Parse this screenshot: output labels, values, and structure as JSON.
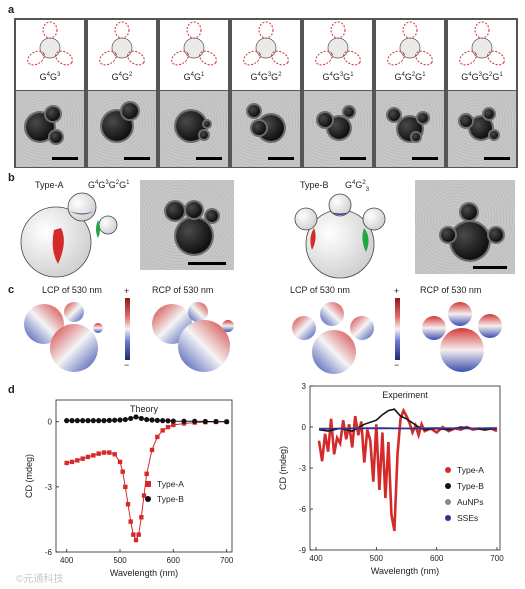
{
  "panels": {
    "a": {
      "letter": "a",
      "labels": [
        {
          "base": "G",
          "b1": "4",
          "mid": "G",
          "b2": "3",
          "rest": ""
        },
        {
          "base": "G",
          "b1": "4",
          "mid": "G",
          "b2": "2",
          "rest": ""
        },
        {
          "base": "G",
          "b1": "4",
          "mid": "G",
          "b2": "1",
          "rest": ""
        },
        {
          "base": "G",
          "b1": "4",
          "mid": "G",
          "b2": "3",
          "rest": "G",
          "b3": "2"
        },
        {
          "base": "G",
          "b1": "4",
          "mid": "G",
          "b2": "3",
          "rest": "G",
          "b3": "1"
        },
        {
          "base": "G",
          "b1": "4",
          "mid": "G",
          "b2": "2",
          "rest": "G",
          "b3": "1"
        },
        {
          "base": "G",
          "b1": "4",
          "mid": "G",
          "b2": "3",
          "rest": "G",
          "b3": "2",
          "extra": "G",
          "b4": "1"
        }
      ]
    },
    "b": {
      "letter": "b",
      "type_a": "Type-A",
      "type_a_formula": {
        "t1": "G",
        "s1": "4",
        "t2": "G",
        "s2": "3",
        "t3": "G",
        "s3": "2",
        "t4": "G",
        "s4": "1"
      },
      "type_b": "Type-B",
      "type_b_formula": {
        "t1": "G",
        "s1": "4",
        "t2": "G",
        "s2": "2",
        "sub": "3"
      }
    },
    "c": {
      "letter": "c",
      "maps": [
        "LCP of 530 nm",
        "RCP of 530 nm",
        "LCP of 530 nm",
        "RCP of 530 nm"
      ],
      "scale_plus": "+",
      "scale_minus": "−"
    },
    "d": {
      "letter": "d"
    }
  },
  "watermark": "©元通科技",
  "chart_data": [
    {
      "type": "line",
      "title": "Theory",
      "xlabel": "Wavelength (nm)",
      "ylabel": "CD (mdeg)",
      "xlim": [
        380,
        710
      ],
      "ylim": [
        -6,
        1
      ],
      "xticks": [
        400,
        500,
        600,
        700
      ],
      "yticks": [
        0,
        -3,
        -6
      ],
      "legend_position": "lower-right",
      "series": [
        {
          "name": "Type-A",
          "color": "#d42a2a",
          "marker": "square",
          "x": [
            400,
            410,
            420,
            430,
            440,
            450,
            460,
            470,
            480,
            490,
            500,
            505,
            510,
            515,
            520,
            525,
            530,
            535,
            540,
            545,
            550,
            560,
            570,
            580,
            590,
            600,
            620,
            640,
            660,
            680,
            700
          ],
          "y": [
            -1.9,
            -1.85,
            -1.78,
            -1.7,
            -1.62,
            -1.55,
            -1.47,
            -1.42,
            -1.42,
            -1.5,
            -1.85,
            -2.3,
            -3.0,
            -3.8,
            -4.6,
            -5.2,
            -5.45,
            -5.2,
            -4.4,
            -3.4,
            -2.4,
            -1.3,
            -0.7,
            -0.4,
            -0.25,
            -0.15,
            -0.08,
            -0.04,
            -0.02,
            -0.01,
            0.0
          ]
        },
        {
          "name": "Type-B",
          "color": "#111111",
          "marker": "circle",
          "x": [
            400,
            410,
            420,
            430,
            440,
            450,
            460,
            470,
            480,
            490,
            500,
            510,
            520,
            530,
            540,
            550,
            560,
            570,
            580,
            590,
            600,
            620,
            640,
            660,
            680,
            700
          ],
          "y": [
            0.05,
            0.05,
            0.05,
            0.05,
            0.05,
            0.05,
            0.05,
            0.05,
            0.06,
            0.07,
            0.08,
            0.1,
            0.15,
            0.22,
            0.15,
            0.1,
            0.08,
            0.06,
            0.05,
            0.04,
            0.03,
            0.02,
            0.02,
            0.01,
            0.01,
            0.0
          ]
        }
      ]
    },
    {
      "type": "line",
      "title": "Experiment",
      "xlabel": "Wavelength (nm)",
      "ylabel": "CD (mdeg)",
      "xlim": [
        390,
        705
      ],
      "ylim": [
        -9,
        3
      ],
      "xticks": [
        400,
        500,
        600,
        700
      ],
      "yticks": [
        3,
        0,
        -3,
        -6,
        -9
      ],
      "legend_position": "right",
      "series": [
        {
          "name": "Type-A",
          "color": "#d42a2a",
          "x": [
            405,
            410,
            415,
            420,
            425,
            430,
            435,
            440,
            445,
            450,
            455,
            460,
            465,
            470,
            475,
            480,
            485,
            490,
            495,
            500,
            505,
            510,
            515,
            520,
            525,
            530,
            535,
            540,
            545,
            550,
            555,
            560,
            565,
            570,
            575,
            580,
            590,
            600,
            610,
            620,
            630,
            640,
            650,
            660,
            670,
            680,
            690,
            700
          ],
          "y": [
            -1.0,
            -2.5,
            -0.5,
            -1.8,
            0.6,
            -2.0,
            -0.8,
            -1.2,
            0.5,
            -0.9,
            0.2,
            -1.5,
            0.8,
            -0.6,
            0.4,
            -2.6,
            -0.2,
            -1.0,
            -4.0,
            0.2,
            -4.6,
            -0.4,
            -5.2,
            -1.1,
            -6.4,
            -7.6,
            -2.0,
            0.6,
            1.2,
            0.8,
            0.3,
            -0.4,
            0.1,
            -0.6,
            0.2,
            -0.3,
            -0.1,
            -0.4,
            0.0,
            -0.3,
            -0.1,
            -0.2,
            0.0,
            -0.2,
            -0.1,
            -0.2,
            -0.1,
            -0.3
          ]
        },
        {
          "name": "Type-B",
          "color": "#111111",
          "x": [
            405,
            420,
            440,
            460,
            480,
            500,
            510,
            520,
            530,
            540,
            550,
            560,
            570,
            580,
            600,
            620,
            640,
            660,
            680,
            700
          ],
          "y": [
            -0.2,
            -0.3,
            -0.1,
            -0.3,
            0.2,
            0.5,
            0.9,
            1.2,
            1.3,
            0.8,
            0.6,
            0.3,
            0.0,
            -0.2,
            -0.1,
            -0.2,
            0.0,
            -0.1,
            -0.2,
            -0.1
          ]
        },
        {
          "name": "AuNPs",
          "color": "#888888",
          "x": [
            405,
            450,
            500,
            550,
            600,
            650,
            700
          ],
          "y": [
            -0.1,
            -0.1,
            -0.05,
            -0.1,
            -0.05,
            -0.1,
            -0.05
          ]
        },
        {
          "name": "SSEs",
          "color": "#2e3192",
          "x": [
            405,
            450,
            500,
            550,
            600,
            650,
            700
          ],
          "y": [
            -0.15,
            -0.1,
            -0.1,
            -0.1,
            -0.1,
            -0.1,
            -0.1
          ]
        }
      ]
    }
  ]
}
